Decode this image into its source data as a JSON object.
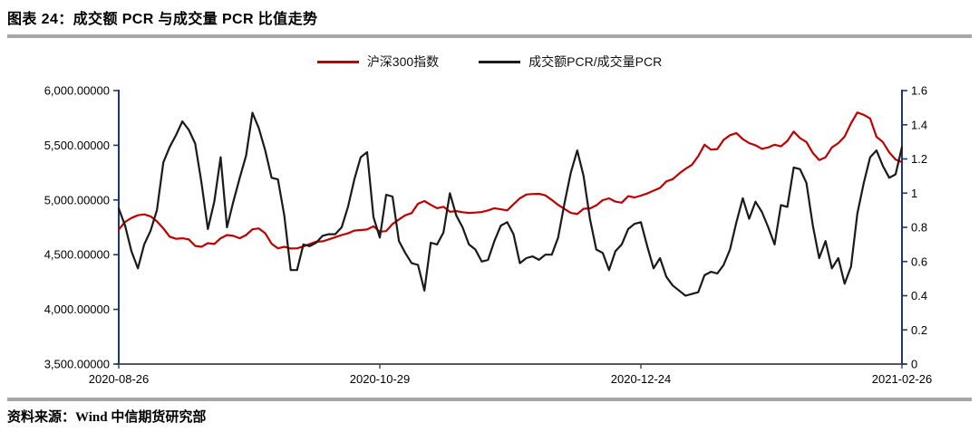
{
  "title": "图表 24：成交额 PCR 与成交量 PCR 比值走势",
  "footer": {
    "text": "资料来源：Wind 中信期货研究部"
  },
  "colors": {
    "series_red": "#c00000",
    "series_black": "#1a1a1a",
    "axis_navy": "#1f3864",
    "baseline_gray": "#404040",
    "divider_gray": "#a6a6a6",
    "label_text": "#000000"
  },
  "chart_data": {
    "type": "line",
    "title": "成交额 PCR 与成交量 PCR 比值走势",
    "grid": false,
    "legend_position": "top",
    "x_tick_labels": [
      "2020-08-26",
      "2020-10-29",
      "2020-12-24",
      "2021-02-26"
    ],
    "left_axis": {
      "min": 3500,
      "max": 6000,
      "tick_labels": [
        "6,000.00000",
        "5,500.00000",
        "5,000.00000",
        "4,500.00000",
        "4,000.00000",
        "3,500.00000"
      ]
    },
    "right_axis": {
      "min": 0,
      "max": 1.6,
      "tick_labels": [
        "1.6",
        "1.4",
        "1.2",
        "1",
        "0.8",
        "0.6",
        "0.4",
        "0.2",
        "0"
      ]
    },
    "series": [
      {
        "name": "沪深300指数",
        "axis": "left",
        "color": "#c00000",
        "values": [
          4730,
          4800,
          4835,
          4860,
          4868,
          4850,
          4805,
          4740,
          4665,
          4645,
          4650,
          4640,
          4580,
          4572,
          4605,
          4598,
          4650,
          4680,
          4672,
          4650,
          4680,
          4732,
          4740,
          4695,
          4600,
          4558,
          4572,
          4556,
          4558,
          4575,
          4598,
          4618,
          4622,
          4640,
          4660,
          4680,
          4695,
          4720,
          4725,
          4730,
          4760,
          4710,
          4715,
          4780,
          4822,
          4860,
          4880,
          4965,
          4990,
          4955,
          4925,
          4938,
          4892,
          4898,
          4888,
          4882,
          4885,
          4890,
          4905,
          4925,
          4915,
          4905,
          4960,
          5015,
          5050,
          5055,
          5056,
          5042,
          5000,
          4955,
          4918,
          4882,
          4872,
          4920,
          4923,
          4950,
          4998,
          5015,
          4985,
          4975,
          5035,
          5023,
          5040,
          5060,
          5085,
          5110,
          5170,
          5190,
          5240,
          5285,
          5320,
          5400,
          5505,
          5460,
          5465,
          5550,
          5592,
          5612,
          5556,
          5520,
          5500,
          5468,
          5480,
          5505,
          5490,
          5540,
          5625,
          5565,
          5530,
          5430,
          5365,
          5390,
          5480,
          5520,
          5580,
          5700,
          5800,
          5778,
          5745,
          5578,
          5530,
          5435,
          5370,
          5345
        ]
      },
      {
        "name": "成交额PCR/成交量PCR",
        "axis": "right",
        "color": "#1a1a1a",
        "values": [
          0.91,
          0.81,
          0.66,
          0.56,
          0.7,
          0.78,
          0.9,
          1.18,
          1.27,
          1.34,
          1.42,
          1.37,
          1.29,
          1.06,
          0.79,
          0.95,
          1.21,
          0.8,
          0.95,
          1.09,
          1.22,
          1.47,
          1.38,
          1.25,
          1.09,
          1.08,
          0.87,
          0.55,
          0.55,
          0.7,
          0.69,
          0.71,
          0.75,
          0.76,
          0.76,
          0.8,
          0.92,
          1.08,
          1.21,
          1.24,
          0.86,
          0.74,
          0.99,
          0.98,
          0.72,
          0.65,
          0.59,
          0.58,
          0.43,
          0.71,
          0.7,
          0.77,
          1.0,
          0.87,
          0.8,
          0.7,
          0.67,
          0.6,
          0.61,
          0.72,
          0.81,
          0.83,
          0.76,
          0.59,
          0.62,
          0.63,
          0.61,
          0.64,
          0.64,
          0.74,
          0.94,
          1.12,
          1.25,
          1.1,
          0.85,
          0.67,
          0.65,
          0.55,
          0.66,
          0.7,
          0.79,
          0.82,
          0.83,
          0.69,
          0.56,
          0.62,
          0.51,
          0.46,
          0.43,
          0.4,
          0.41,
          0.42,
          0.52,
          0.54,
          0.53,
          0.58,
          0.67,
          0.83,
          0.97,
          0.85,
          0.95,
          0.89,
          0.8,
          0.7,
          0.93,
          0.92,
          1.15,
          1.14,
          1.06,
          0.81,
          0.62,
          0.72,
          0.56,
          0.62,
          0.47,
          0.57,
          0.88,
          1.06,
          1.21,
          1.25,
          1.16,
          1.09,
          1.11,
          1.27
        ]
      }
    ]
  }
}
